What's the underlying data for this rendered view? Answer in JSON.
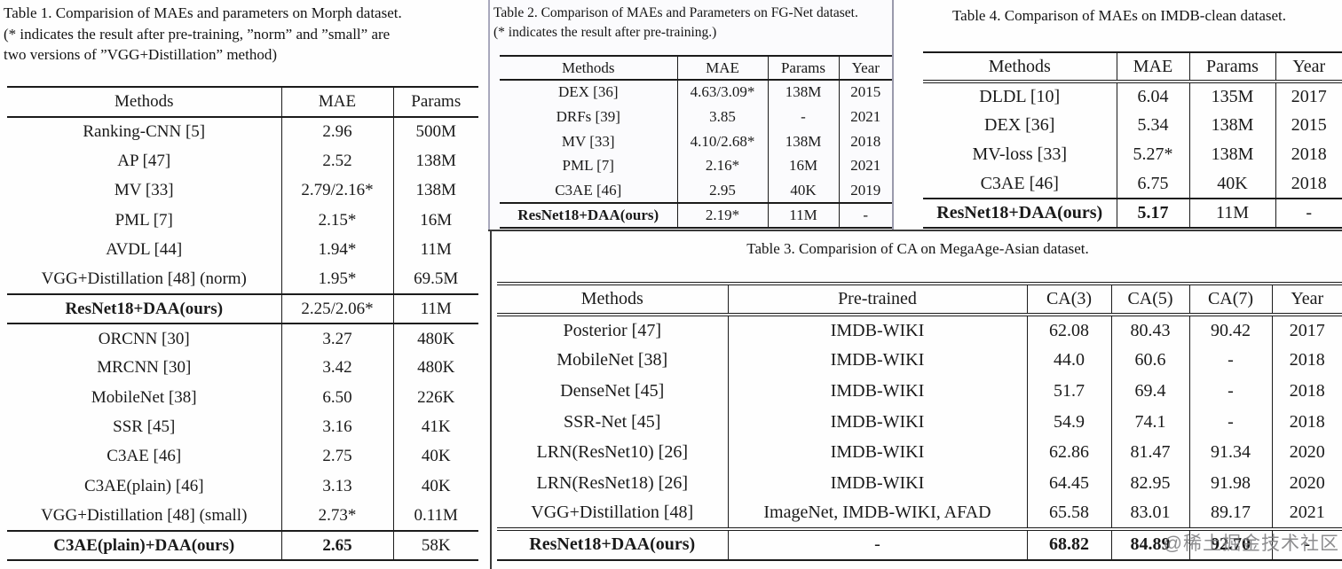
{
  "page": {
    "watermark": "@稀土掘金技术社区"
  },
  "tables": {
    "t1": {
      "caption_lines": [
        "Table 1. Comparision of MAEs and parameters on Morph dataset.",
        "(* indicates the result after pre-training, ”norm” and ”small” are",
        "two versions of ”VGG+Distillation” method)"
      ],
      "columns": [
        "Methods",
        "MAE",
        "Params"
      ],
      "rows": [
        {
          "cells": [
            "Ranking-CNN [5]",
            "2.96",
            "500M"
          ]
        },
        {
          "cells": [
            "AP [47]",
            "2.52",
            "138M"
          ]
        },
        {
          "cells": [
            "MV [33]",
            "2.79/2.16*",
            "138M"
          ]
        },
        {
          "cells": [
            "PML [7]",
            "2.15*",
            "16M"
          ]
        },
        {
          "cells": [
            "AVDL [44]",
            "1.94*",
            "11M"
          ]
        },
        {
          "cells": [
            "VGG+Distillation [48] (norm)",
            "1.95*",
            "69.5M"
          ]
        },
        {
          "cells": [
            "ResNet18+DAA(ours)",
            "2.25/2.06*",
            "11M"
          ],
          "bold": [
            0
          ],
          "rule": true
        },
        {
          "cells": [
            "ORCNN [30]",
            "3.27",
            "480K"
          ],
          "rule": true
        },
        {
          "cells": [
            "MRCNN [30]",
            "3.42",
            "480K"
          ]
        },
        {
          "cells": [
            "MobileNet [38]",
            "6.50",
            "226K"
          ]
        },
        {
          "cells": [
            "SSR [45]",
            "3.16",
            "41K"
          ]
        },
        {
          "cells": [
            "C3AE [46]",
            "2.75",
            "40K"
          ]
        },
        {
          "cells": [
            "C3AE(plain) [46]",
            "3.13",
            "40K"
          ]
        },
        {
          "cells": [
            "VGG+Distillation [48] (small)",
            "2.73*",
            "0.11M"
          ]
        },
        {
          "cells": [
            "C3AE(plain)+DAA(ours)",
            "2.65",
            "58K"
          ],
          "bold": [
            0,
            1
          ],
          "rule": true
        }
      ]
    },
    "t2": {
      "caption_lines": [
        "Table 2. Comparison of MAEs and Parameters on FG-Net dataset.",
        "(* indicates the result after pre-training.)"
      ],
      "columns": [
        "Methods",
        "MAE",
        "Params",
        "Year"
      ],
      "rows": [
        {
          "cells": [
            "DEX [36]",
            "4.63/3.09*",
            "138M",
            "2015"
          ]
        },
        {
          "cells": [
            "DRFs [39]",
            "3.85",
            "-",
            "2021"
          ]
        },
        {
          "cells": [
            "MV [33]",
            "4.10/2.68*",
            "138M",
            "2018"
          ]
        },
        {
          "cells": [
            "PML [7]",
            "2.16*",
            "16M",
            "2021"
          ]
        },
        {
          "cells": [
            "C3AE [46]",
            "2.95",
            "40K",
            "2019"
          ]
        },
        {
          "cells": [
            "ResNet18+DAA(ours)",
            "2.19*",
            "11M",
            "-"
          ],
          "bold": [
            0
          ],
          "rule": true
        }
      ]
    },
    "t4": {
      "caption_lines": [
        "Table 4. Comparison of MAEs on IMDB-clean dataset."
      ],
      "columns": [
        "Methods",
        "MAE",
        "Params",
        "Year"
      ],
      "rows": [
        {
          "cells": [
            "DLDL [10]",
            "6.04",
            "135M",
            "2017"
          ]
        },
        {
          "cells": [
            "DEX [36]",
            "5.34",
            "138M",
            "2015"
          ]
        },
        {
          "cells": [
            "MV-loss [33]",
            "5.27*",
            "138M",
            "2018"
          ]
        },
        {
          "cells": [
            "C3AE [46]",
            "6.75",
            "40K",
            "2018"
          ]
        },
        {
          "cells": [
            "ResNet18+DAA(ours)",
            "5.17",
            "11M",
            "-"
          ],
          "bold": [
            0,
            1
          ],
          "rule": true
        }
      ]
    },
    "t3": {
      "caption_lines": [
        "Table 3. Comparision of CA on MegaAge-Asian dataset."
      ],
      "columns": [
        "Methods",
        "Pre-trained",
        "CA(3)",
        "CA(5)",
        "CA(7)",
        "Year"
      ],
      "rows": [
        {
          "cells": [
            "Posterior [47]",
            "IMDB-WIKI",
            "62.08",
            "80.43",
            "90.42",
            "2017"
          ]
        },
        {
          "cells": [
            "MobileNet [38]",
            "IMDB-WIKI",
            "44.0",
            "60.6",
            "-",
            "2018"
          ]
        },
        {
          "cells": [
            "DenseNet [45]",
            "IMDB-WIKI",
            "51.7",
            "69.4",
            "-",
            "2018"
          ]
        },
        {
          "cells": [
            "SSR-Net [45]",
            "IMDB-WIKI",
            "54.9",
            "74.1",
            "-",
            "2018"
          ]
        },
        {
          "cells": [
            "LRN(ResNet10) [26]",
            "IMDB-WIKI",
            "62.86",
            "81.47",
            "91.34",
            "2020"
          ]
        },
        {
          "cells": [
            "LRN(ResNet18) [26]",
            "IMDB-WIKI",
            "64.45",
            "82.95",
            "91.98",
            "2020"
          ]
        },
        {
          "cells": [
            "VGG+Distillation [48]",
            "ImageNet, IMDB-WIKI, AFAD",
            "65.58",
            "83.01",
            "89.17",
            "2021"
          ]
        },
        {
          "cells": [
            "ResNet18+DAA(ours)",
            "-",
            "68.82",
            "84.89",
            "92.70",
            "-"
          ],
          "bold": [
            0,
            2,
            3,
            4
          ],
          "rule": true
        }
      ]
    }
  }
}
